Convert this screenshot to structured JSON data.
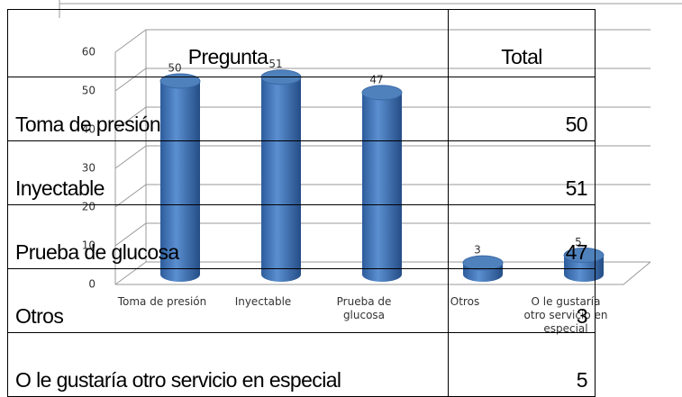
{
  "chart_data": {
    "type": "bar",
    "categories": [
      "Toma de presión",
      "Inyectable",
      "Prueba de glucosa",
      "Otros",
      "O le gustaría otro servicio en especial"
    ],
    "values": [
      50,
      51,
      47,
      3,
      5
    ],
    "color": "#4f81bd",
    "ylim": [
      0,
      60
    ],
    "yticks": [
      0,
      10,
      20,
      30,
      40,
      50,
      60
    ],
    "grid": true
  },
  "table": {
    "header": [
      "Pregunta",
      "Total"
    ],
    "rows": [
      [
        "Toma de presión",
        50
      ],
      [
        "Inyectable",
        51
      ],
      [
        "Prueba de glucosa",
        47
      ],
      [
        "Otros",
        3
      ],
      [
        "O le gustaría otro servicio en especial",
        5
      ]
    ]
  }
}
